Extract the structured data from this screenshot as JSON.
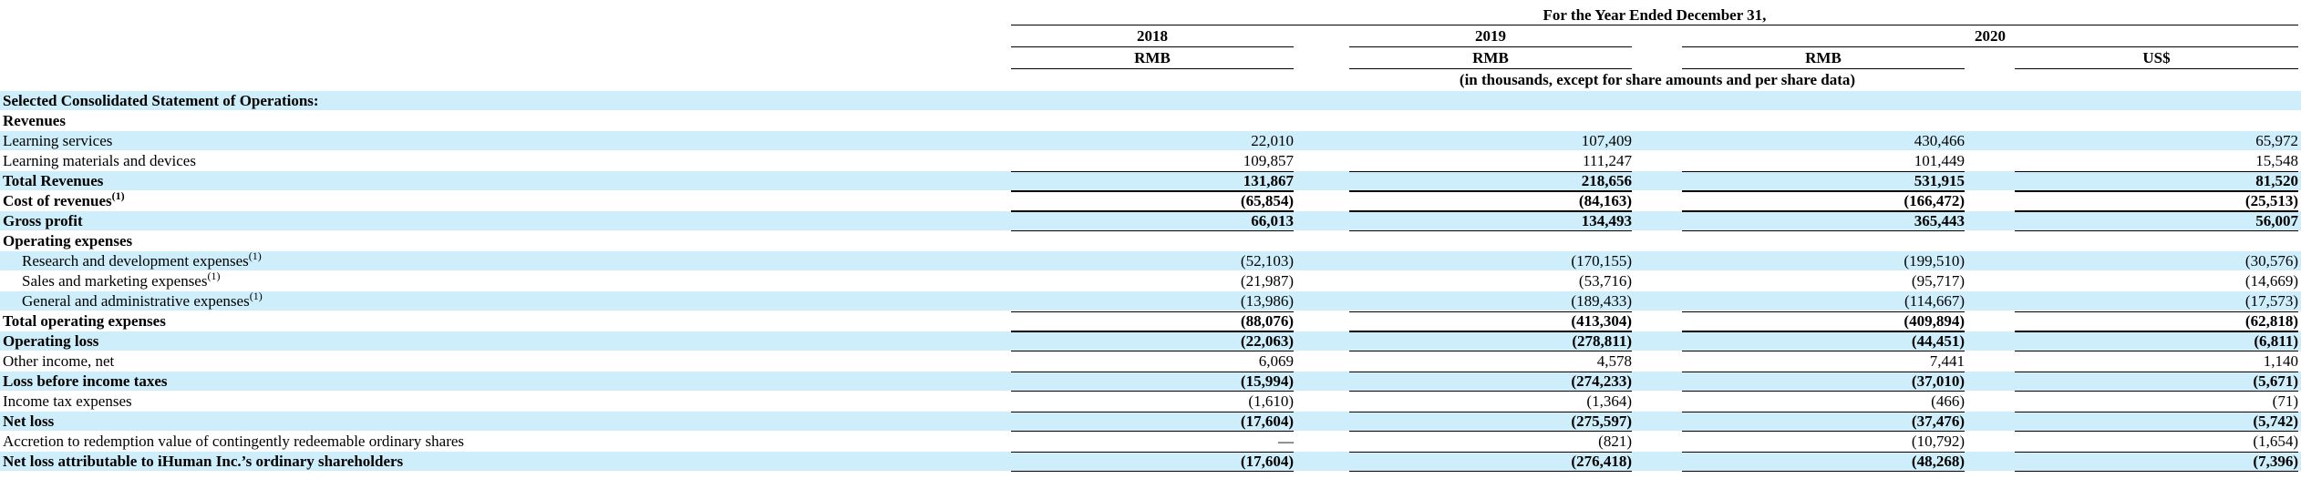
{
  "header": {
    "period": "For the Year Ended December 31,",
    "years": [
      "2018",
      "2019",
      "2020"
    ],
    "currencies": [
      "RMB",
      "RMB",
      "RMB",
      "US$"
    ],
    "units_note": "(in thousands, except for share amounts and per share data)"
  },
  "rows": [
    {
      "label": "Selected Consolidated Statement of Operations:",
      "bold": true,
      "shade": true,
      "indent": false,
      "sup": "",
      "values": [
        "",
        "",
        "",
        ""
      ]
    },
    {
      "label": "Revenues",
      "bold": true,
      "shade": false,
      "indent": false,
      "sup": "",
      "values": [
        "",
        "",
        "",
        ""
      ]
    },
    {
      "label": "Learning services",
      "bold": false,
      "shade": true,
      "indent": false,
      "sup": "",
      "values": [
        "22,010",
        "107,409",
        "430,466",
        "65,972"
      ]
    },
    {
      "label": "Learning materials and devices",
      "bold": false,
      "shade": false,
      "indent": false,
      "sup": "",
      "values": [
        "109,857",
        "111,247",
        "101,449",
        "15,548"
      ]
    },
    {
      "label": "Total Revenues",
      "bold": true,
      "shade": true,
      "indent": false,
      "sup": "",
      "values": [
        "131,867",
        "218,656",
        "531,915",
        "81,520"
      ]
    },
    {
      "label": "Cost of revenues",
      "bold": true,
      "shade": false,
      "indent": false,
      "sup": "(1)",
      "values": [
        "(65,854)",
        "(84,163)",
        "(166,472)",
        "(25,513)"
      ]
    },
    {
      "label": "Gross profit",
      "bold": true,
      "shade": true,
      "indent": false,
      "sup": "",
      "values": [
        "66,013",
        "134,493",
        "365,443",
        "56,007"
      ]
    },
    {
      "label": "Operating expenses",
      "bold": true,
      "shade": false,
      "indent": false,
      "sup": "",
      "values": [
        "",
        "",
        "",
        ""
      ]
    },
    {
      "label": "Research and development expenses",
      "bold": false,
      "shade": true,
      "indent": true,
      "sup": "(1)",
      "values": [
        "(52,103)",
        "(170,155)",
        "(199,510)",
        "(30,576)"
      ]
    },
    {
      "label": "Sales and marketing expenses",
      "bold": false,
      "shade": false,
      "indent": true,
      "sup": "(1)",
      "values": [
        "(21,987)",
        "(53,716)",
        "(95,717)",
        "(14,669)"
      ]
    },
    {
      "label": "General and administrative expenses",
      "bold": false,
      "shade": true,
      "indent": true,
      "sup": "(1)",
      "values": [
        "(13,986)",
        "(189,433)",
        "(114,667)",
        "(17,573)"
      ]
    },
    {
      "label": "Total operating expenses",
      "bold": true,
      "shade": false,
      "indent": false,
      "sup": "",
      "values": [
        "(88,076)",
        "(413,304)",
        "(409,894)",
        "(62,818)"
      ]
    },
    {
      "label": "Operating loss",
      "bold": true,
      "shade": true,
      "indent": false,
      "sup": "",
      "values": [
        "(22,063)",
        "(278,811)",
        "(44,451)",
        "(6,811)"
      ]
    },
    {
      "label": "Other income, net",
      "bold": false,
      "shade": false,
      "indent": false,
      "sup": "",
      "values": [
        "6,069",
        "4,578",
        "7,441",
        "1,140"
      ]
    },
    {
      "label": "Loss before income taxes",
      "bold": true,
      "shade": true,
      "indent": false,
      "sup": "",
      "values": [
        "(15,994)",
        "(274,233)",
        "(37,010)",
        "(5,671)"
      ]
    },
    {
      "label": "Income tax expenses",
      "bold": false,
      "shade": false,
      "indent": false,
      "sup": "",
      "values": [
        "(1,610)",
        "(1,364)",
        "(466)",
        "(71)"
      ]
    },
    {
      "label": "Net loss",
      "bold": true,
      "shade": true,
      "indent": false,
      "sup": "",
      "values": [
        "(17,604)",
        "(275,597)",
        "(37,476)",
        "(5,742)"
      ]
    },
    {
      "label": "Accretion to redemption value of contingently redeemable ordinary shares",
      "bold": false,
      "shade": false,
      "indent": false,
      "sup": "",
      "values": [
        "—",
        "(821)",
        "(10,792)",
        "(1,654)"
      ]
    },
    {
      "label": "Net loss attributable to iHuman Inc.’s ordinary shareholders",
      "bold": true,
      "shade": true,
      "indent": false,
      "sup": "",
      "values": [
        "(17,604)",
        "(276,418)",
        "(48,268)",
        "(7,396)"
      ]
    }
  ]
}
